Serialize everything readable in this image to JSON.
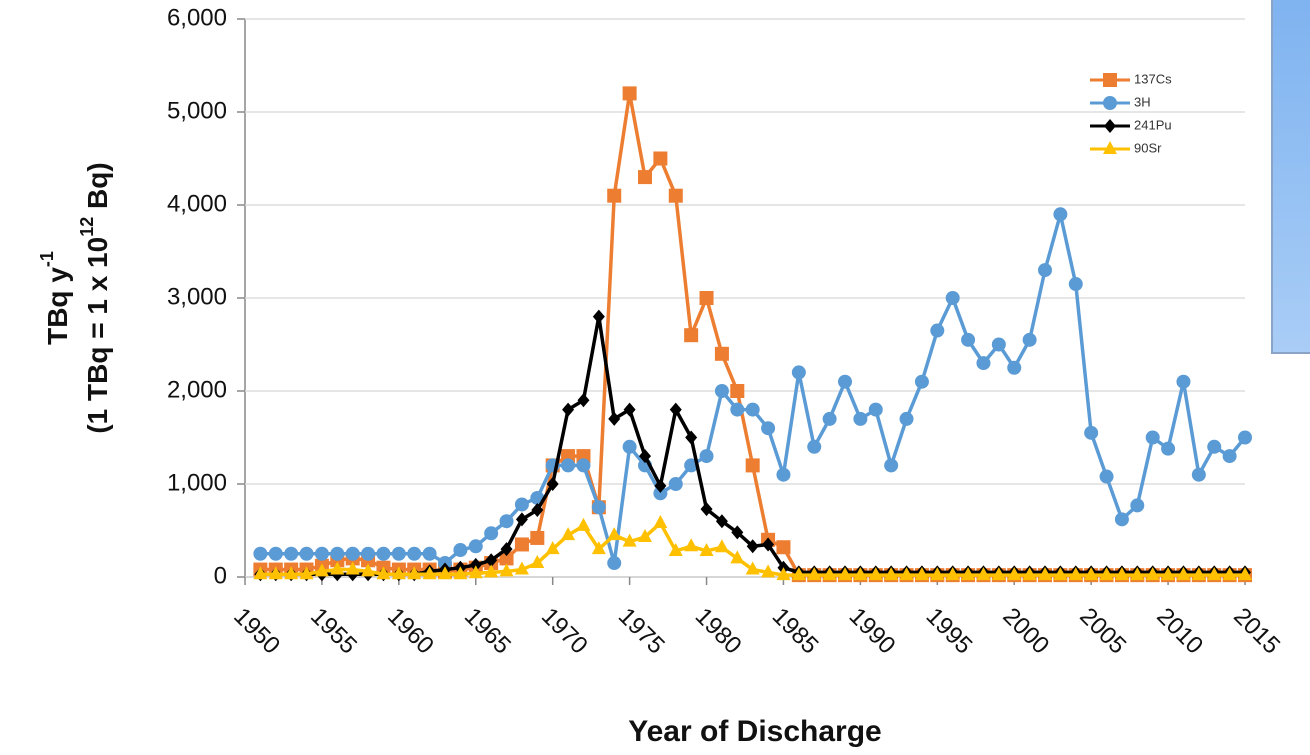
{
  "chart_data": {
    "type": "line",
    "x_label": "Year of Discharge",
    "y_label": [
      "TBq  y",
      "-1"
    ],
    "y_label_2": [
      "(1 TBq = 1 x 10",
      "12",
      " Bq)"
    ],
    "x": [
      1951,
      1952,
      1953,
      1954,
      1955,
      1956,
      1957,
      1958,
      1959,
      1960,
      1961,
      1962,
      1963,
      1964,
      1965,
      1966,
      1967,
      1968,
      1969,
      1970,
      1971,
      1972,
      1973,
      1974,
      1975,
      1976,
      1977,
      1978,
      1979,
      1980,
      1981,
      1982,
      1983,
      1984,
      1985,
      1986,
      1987,
      1988,
      1989,
      1990,
      1991,
      1992,
      1993,
      1994,
      1995,
      1996,
      1997,
      1998,
      1999,
      2000,
      2001,
      2002,
      2003,
      2004,
      2005,
      2006,
      2007,
      2008,
      2009,
      2010,
      2011,
      2012,
      2013,
      2014,
      2015
    ],
    "xlim": [
      1950,
      2015
    ],
    "xticks": [
      1950,
      1955,
      1960,
      1965,
      1970,
      1975,
      1980,
      1985,
      1990,
      1995,
      2000,
      2005,
      2010,
      2015
    ],
    "ylim": [
      0,
      6000
    ],
    "yticks": [
      0,
      {
        "value": 1000,
        "label": "1,000"
      },
      {
        "value": 2000,
        "label": "2,000"
      },
      {
        "value": 3000,
        "label": "3,000"
      },
      {
        "value": 4000,
        "label": "4,000"
      },
      {
        "value": 5000,
        "label": "5,000"
      },
      {
        "value": 6000,
        "label": "6,000"
      }
    ],
    "grid": true,
    "legend": "upper right",
    "series": [
      {
        "name": "137Cs",
        "color": "#ed7d31",
        "marker": "square",
        "values": [
          80,
          80,
          80,
          80,
          120,
          180,
          200,
          180,
          100,
          80,
          80,
          80,
          60,
          80,
          100,
          150,
          200,
          350,
          420,
          1200,
          1300,
          1300,
          750,
          4100,
          5200,
          4300,
          4500,
          4100,
          2600,
          3000,
          2400,
          2000,
          1200,
          400,
          320,
          20,
          20,
          20,
          20,
          20,
          20,
          20,
          20,
          20,
          20,
          20,
          20,
          20,
          20,
          20,
          20,
          20,
          20,
          20,
          20,
          20,
          20,
          20,
          20,
          20,
          20,
          20,
          20,
          20,
          20
        ]
      },
      {
        "name": "3H",
        "color": "#5b9bd5",
        "marker": "circle",
        "values": [
          250,
          250,
          250,
          250,
          250,
          250,
          250,
          250,
          250,
          250,
          250,
          250,
          150,
          290,
          330,
          470,
          600,
          780,
          850,
          1200,
          1200,
          1200,
          750,
          150,
          1400,
          1200,
          900,
          1000,
          1200,
          1300,
          2000,
          1800,
          1800,
          1600,
          1100,
          2200,
          1400,
          1700,
          2100,
          1700,
          1800,
          1200,
          1700,
          2100,
          2650,
          3000,
          2550,
          2300,
          2500,
          2250,
          2550,
          3300,
          3900,
          3150,
          1550,
          1080,
          620,
          770,
          1500,
          1380,
          2100,
          1100,
          1400,
          1300,
          1500
        ]
      },
      {
        "name": "241Pu",
        "color": "#000000",
        "marker": "diamond",
        "values": [
          30,
          30,
          30,
          30,
          30,
          30,
          30,
          30,
          30,
          30,
          30,
          60,
          80,
          100,
          130,
          180,
          300,
          620,
          720,
          1000,
          1800,
          1900,
          2800,
          1700,
          1800,
          1300,
          980,
          1800,
          1500,
          730,
          600,
          480,
          330,
          350,
          100,
          50,
          50,
          50,
          50,
          50,
          50,
          50,
          50,
          50,
          50,
          50,
          50,
          50,
          50,
          50,
          50,
          50,
          50,
          50,
          50,
          50,
          50,
          50,
          50,
          50,
          50,
          50,
          50,
          50,
          50
        ]
      },
      {
        "name": "90Sr",
        "color": "#ffc000",
        "marker": "triangle",
        "values": [
          30,
          30,
          30,
          30,
          60,
          80,
          80,
          60,
          30,
          30,
          30,
          30,
          30,
          30,
          40,
          50,
          60,
          80,
          150,
          300,
          450,
          550,
          300,
          450,
          380,
          430,
          580,
          280,
          330,
          280,
          320,
          200,
          80,
          50,
          20,
          20,
          20,
          20,
          20,
          20,
          20,
          20,
          20,
          20,
          20,
          20,
          20,
          20,
          20,
          20,
          20,
          20,
          20,
          20,
          20,
          20,
          20,
          20,
          20,
          20,
          20,
          20,
          20,
          20,
          20
        ]
      }
    ]
  }
}
